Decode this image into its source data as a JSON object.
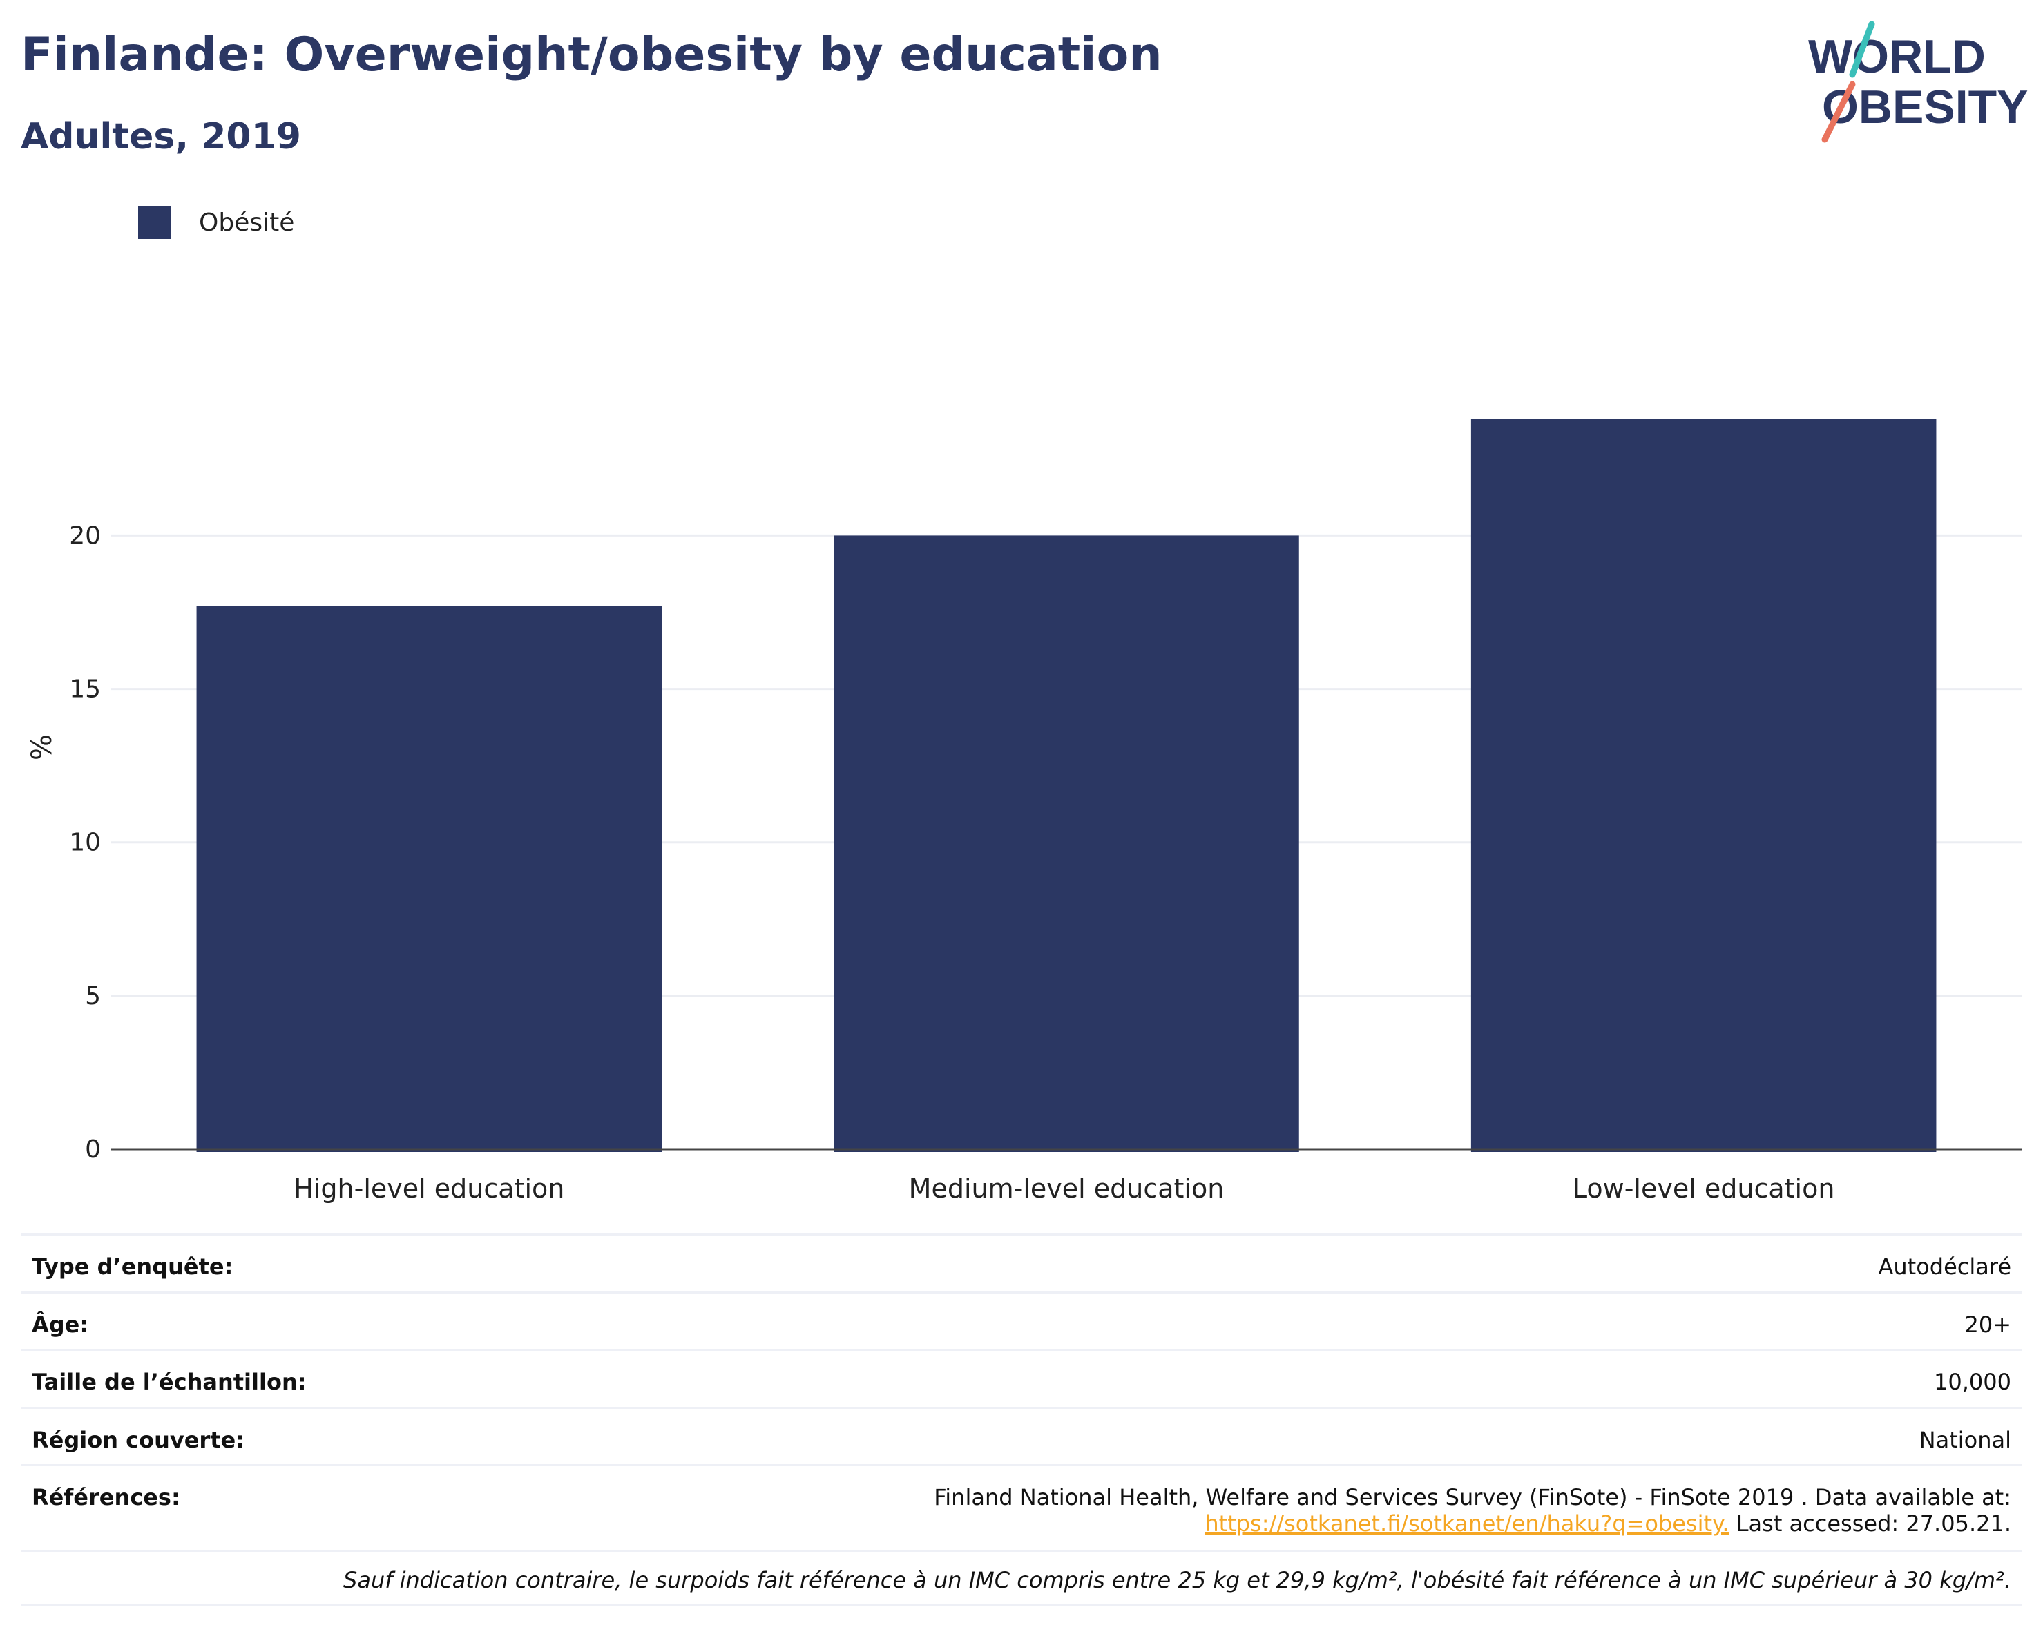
{
  "header": {
    "title": "Finlande: Overweight/obesity by education",
    "subtitle": "Adultes, 2019",
    "logo_text_top": "WORLD",
    "logo_text_bottom": "OBESITY"
  },
  "legend": {
    "label": "Obésité",
    "color": "#2b3763"
  },
  "chart_data": {
    "type": "bar",
    "categories": [
      "High-level education",
      "Medium-level education",
      "Low-level education"
    ],
    "series": [
      {
        "name": "Obésité",
        "values": [
          17.7,
          20.0,
          23.8
        ]
      }
    ],
    "xlabel": "",
    "ylabel": "%",
    "ylim": [
      0,
      28
    ],
    "yticks": [
      0,
      5,
      10,
      15,
      20
    ],
    "grid": true,
    "legend_position": "top-left",
    "bar_color": "#2b3763"
  },
  "meta": {
    "survey_type_label": "Type d’enquête:",
    "survey_type_value": "Autodéclaré",
    "age_label": "Âge:",
    "age_value": "20+",
    "sample_label": "Taille de l’échantillon:",
    "sample_value": "10,000",
    "region_label": "Région couverte:",
    "region_value": "National",
    "refs_label": "Références:",
    "refs_line1": "Finland National Health, Welfare and Services Survey (FinSote) - FinSote 2019 . Data available at:",
    "refs_link": "https://sotkanet.fi/sotkanet/en/haku?q=obesity.",
    "refs_after_link": " Last accessed: 27.05.21.",
    "footnote": "Sauf indication contraire, le surpoids fait référence à un IMC compris entre 25 kg et 29,9 kg/m², l'obésité fait référence à un IMC supérieur à 30 kg/m²."
  }
}
